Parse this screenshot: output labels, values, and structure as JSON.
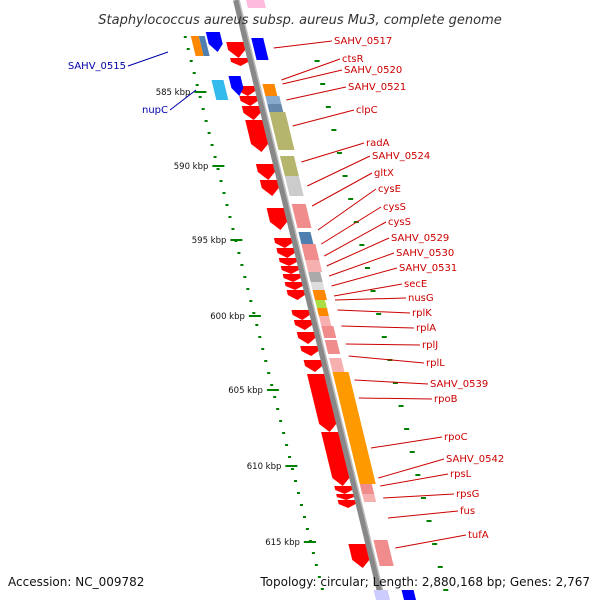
{
  "title": "Staphylococcus aureus subsp. aureus Mu3, complete genome",
  "accession": "Accession: NC_009782",
  "summary": "Topology: circular; Length: 2,880,168 bp; Genes: 2,767",
  "ticks": [
    "585 kbp",
    "590 kbp",
    "595 kbp",
    "600 kbp",
    "605 kbp",
    "610 kbp",
    "615 kbp"
  ],
  "left_labels": [
    {
      "text": "SAHV_0515",
      "color": "#0000aa"
    },
    {
      "text": "nupC",
      "color": "#0000aa"
    }
  ],
  "right_labels": [
    "SAHV_0517",
    "ctsR",
    "SAHV_0520",
    "SAHV_0521",
    "clpC",
    "radA",
    "SAHV_0524",
    "gltX",
    "cysE",
    "cysS",
    "cysS",
    "SAHV_0529",
    "SAHV_0530",
    "SAHV_0531",
    "secE",
    "nusG",
    "rplK",
    "rplA",
    "rplJ",
    "rplL",
    "SAHV_0539",
    "rpoB",
    "rpoC",
    "SAHV_0542",
    "rpsL",
    "rpsG",
    "fus",
    "tufA"
  ],
  "colors": {
    "cds": "#ff0000",
    "minus_cds": "#0000ff",
    "backbone": "#888888",
    "gc_skew": "#008000",
    "label_red": "#cc0000",
    "label_blue": "#0000aa"
  }
}
